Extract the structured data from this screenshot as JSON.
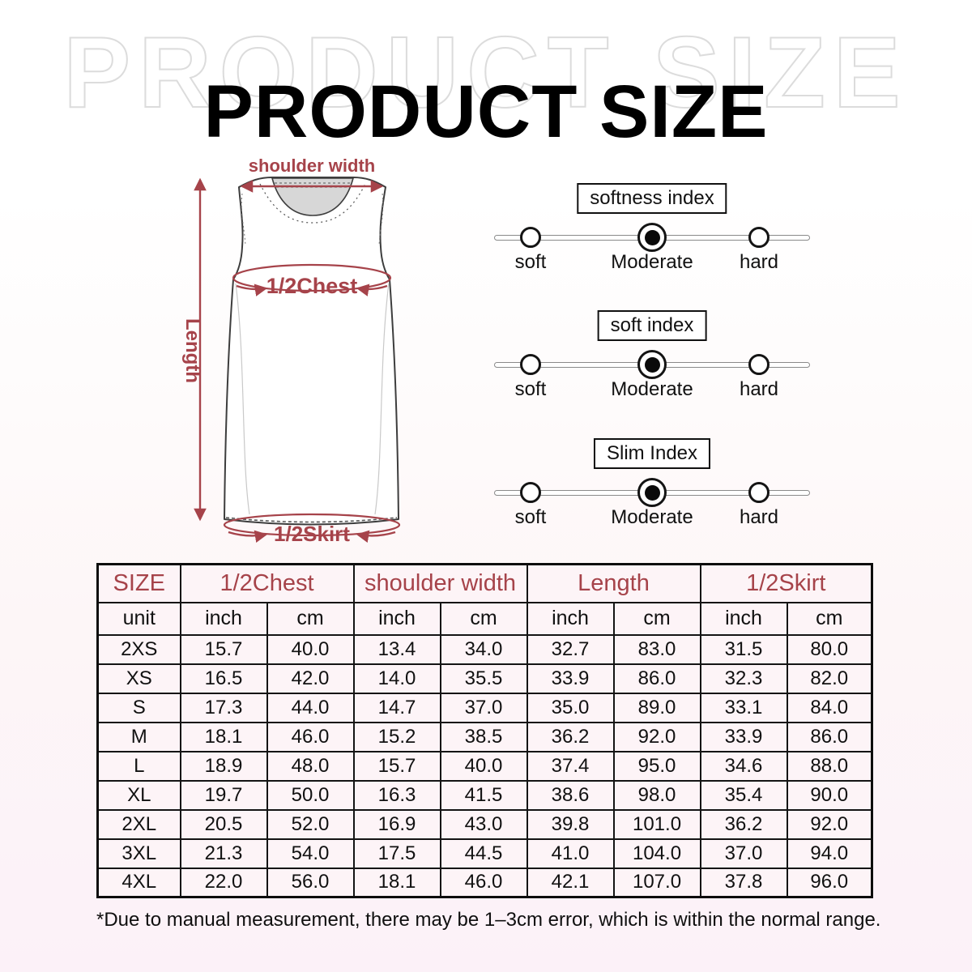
{
  "title": "PRODUCT SIZE",
  "watermark": "PRODUCT SIZE",
  "colors": {
    "accent_red": "#a6434a",
    "table_background": "#fdf4f7",
    "watermark_outline": "#dcdcdc",
    "page_bottom_tint": "#fcf1f8"
  },
  "diagram": {
    "shoulder_width_label": "shoulder width",
    "half_chest_label": "1/2Chest",
    "length_label": "Length",
    "half_skirt_label": "1/2Skirt"
  },
  "sliders": [
    {
      "title": "softness index",
      "options": [
        "soft",
        "Moderate",
        "hard"
      ],
      "selected": "Moderate"
    },
    {
      "title": "soft index",
      "options": [
        "soft",
        "Moderate",
        "hard"
      ],
      "selected": "Moderate"
    },
    {
      "title": "Slim Index",
      "options": [
        "soft",
        "Moderate",
        "hard"
      ],
      "selected": "Moderate"
    }
  ],
  "table": {
    "size_header": "SIZE",
    "unit_label": "unit",
    "groups": [
      "1/2Chest",
      "shoulder width",
      "Length",
      "1/2Skirt"
    ],
    "units": [
      "inch",
      "cm",
      "inch",
      "cm",
      "inch",
      "cm",
      "inch",
      "cm"
    ],
    "rows": [
      {
        "size": "2XS",
        "values": [
          "15.7",
          "40.0",
          "13.4",
          "34.0",
          "32.7",
          "83.0",
          "31.5",
          "80.0"
        ]
      },
      {
        "size": "XS",
        "values": [
          "16.5",
          "42.0",
          "14.0",
          "35.5",
          "33.9",
          "86.0",
          "32.3",
          "82.0"
        ]
      },
      {
        "size": "S",
        "values": [
          "17.3",
          "44.0",
          "14.7",
          "37.0",
          "35.0",
          "89.0",
          "33.1",
          "84.0"
        ]
      },
      {
        "size": "M",
        "values": [
          "18.1",
          "46.0",
          "15.2",
          "38.5",
          "36.2",
          "92.0",
          "33.9",
          "86.0"
        ]
      },
      {
        "size": "L",
        "values": [
          "18.9",
          "48.0",
          "15.7",
          "40.0",
          "37.4",
          "95.0",
          "34.6",
          "88.0"
        ]
      },
      {
        "size": "XL",
        "values": [
          "19.7",
          "50.0",
          "16.3",
          "41.5",
          "38.6",
          "98.0",
          "35.4",
          "90.0"
        ]
      },
      {
        "size": "2XL",
        "values": [
          "20.5",
          "52.0",
          "16.9",
          "43.0",
          "39.8",
          "101.0",
          "36.2",
          "92.0"
        ]
      },
      {
        "size": "3XL",
        "values": [
          "21.3",
          "54.0",
          "17.5",
          "44.5",
          "41.0",
          "104.0",
          "37.0",
          "94.0"
        ]
      },
      {
        "size": "4XL",
        "values": [
          "22.0",
          "56.0",
          "18.1",
          "46.0",
          "42.1",
          "107.0",
          "37.8",
          "96.0"
        ]
      }
    ]
  },
  "footnote": "*Due to manual measurement, there may be 1–3cm error, which is within the normal range."
}
